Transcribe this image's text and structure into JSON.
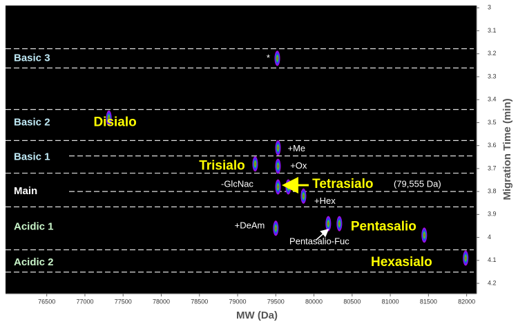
{
  "chart_data": {
    "type": "scatter",
    "x_label": "MW (Da)",
    "y_label": "Migration Time (min)",
    "xlim": [
      75960,
      82130
    ],
    "ylim": [
      2.99,
      4.245
    ],
    "y_inverted": true,
    "xticks": [
      76500,
      77000,
      77500,
      78000,
      78500,
      79000,
      79500,
      80000,
      80500,
      81000,
      81500,
      82000
    ],
    "yticks": [
      3,
      3.1,
      3.2,
      3.3,
      3.4,
      3.5,
      3.6,
      3.7,
      3.8,
      3.9,
      4,
      4.1,
      4.2
    ],
    "background": "#000000",
    "region_lines": [
      3.178,
      3.262,
      3.443,
      3.578,
      3.645,
      3.72,
      3.8,
      3.867,
      4.054,
      4.151
    ],
    "regions": [
      {
        "name": "Basic 3",
        "y": 3.22,
        "color": "#bfe9f5"
      },
      {
        "name": "Basic 2",
        "y": 3.5,
        "color": "#bfe9f5"
      },
      {
        "name": "Basic 1",
        "y": 3.65,
        "color": "#bfe9f5"
      },
      {
        "name": "Main",
        "y": 3.8,
        "color": "#ffffff"
      },
      {
        "name": "Acidic 1",
        "y": 3.955,
        "color": "#c9f5c9"
      },
      {
        "name": "Acidic 2",
        "y": 4.11,
        "color": "#c9f5c9"
      }
    ],
    "points": {
      "x": [
        79520,
        77314,
        79230,
        79529,
        79664,
        80188,
        80333,
        81987,
        79863,
        79529,
        79529,
        79500,
        81445
      ],
      "y": [
        3.22,
        3.48,
        3.68,
        3.78,
        3.78,
        3.94,
        3.94,
        4.09,
        3.82,
        3.61,
        3.69,
        3.96,
        3.99
      ]
    },
    "annotations": [
      {
        "text": "*",
        "x": 79402,
        "y": 3.22,
        "color": "#ffffff"
      },
      {
        "text": "Disialo",
        "x": 77395,
        "y": 3.5,
        "color": "#ffff00"
      },
      {
        "text": "Trisialo",
        "x": 78796,
        "y": 3.69,
        "color": "#ffff00"
      },
      {
        "text": "Tetrasialo",
        "x": 80378,
        "y": 3.77,
        "color": "#ffff00"
      },
      {
        "text": "(79,555 Da)",
        "x": 81355,
        "y": 3.77,
        "color": "#ffffff"
      },
      {
        "text": "Pentasalio",
        "x": 80912,
        "y": 3.955,
        "color": "#ffff00"
      },
      {
        "text": "Hexasialo",
        "x": 81147,
        "y": 4.11,
        "color": "#ffff00"
      },
      {
        "text": "+Me",
        "x": 79772,
        "y": 3.615,
        "color": "#ffffff"
      },
      {
        "text": "+Ox",
        "x": 79799,
        "y": 3.69,
        "color": "#ffffff"
      },
      {
        "text": "-GlcNac",
        "x": 78995,
        "y": 3.77,
        "color": "#ffffff"
      },
      {
        "text": "+Hex",
        "x": 80143,
        "y": 3.843,
        "color": "#ffffff"
      },
      {
        "text": "+DeAm",
        "x": 79158,
        "y": 3.95,
        "color": "#ffffff"
      },
      {
        "text": "Pentasalio-Fuc",
        "x": 80071,
        "y": 4.02,
        "color": "#ffffff"
      }
    ]
  }
}
